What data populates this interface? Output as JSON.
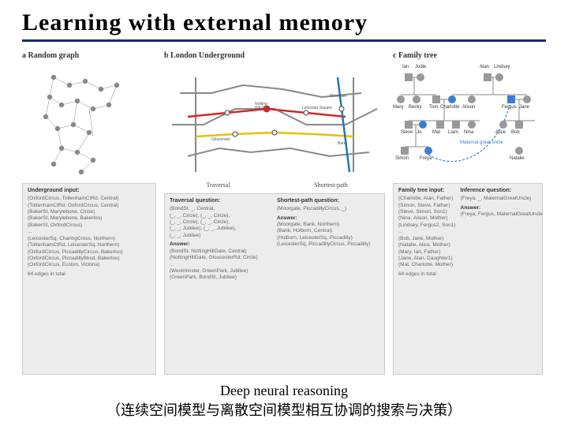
{
  "title": "Learning with  external  memory",
  "caption1": "Deep neural reasoning",
  "caption2": "（连续空间模型与离散空间模型相互协调的搜索与决策）",
  "panels": {
    "a": {
      "label": "a  Random graph",
      "table": {
        "header": "Underground input:",
        "lines": [
          "(OxfordCircus, TottenhamCtRd, Central)",
          "(TottenhamCtRd, OxfordCircus, Central)",
          "(BakerSt, Marylebone, Circle)",
          "(BakerSt, Marylebone, Bakerloo)",
          "(BakerSt, OxfordCircus)",
          "...",
          "(LeicesterSq, CharingCross, Northern)",
          "(TottenhamCtRd, LeicesterSq, Northern)",
          "(OxfordCircus, PiccadillyCircus, Bakerloo)",
          "(OxfordCircus, PiccadillyBksd, Bakerloo)",
          "(OxfordCircus, Euston, Victoria)"
        ],
        "footer": "84 edges in total"
      }
    },
    "b": {
      "label": "b  London Underground",
      "sub_left": "Traversal",
      "sub_right": "Shortest-path",
      "traversal": {
        "header": "Traversal question:",
        "lines": [
          "(BondSt, _, Central,",
          "(_, _, Circle), (_, _, Circle),",
          "(_, _, Circle), (_, _, Circle),",
          "(_, _, Jubilee), (_, _, Jubilee),",
          "(_, _, Jubilee)"
        ],
        "ans_label": "Answer:",
        "answers": [
          "(BondSt, NottingHillGate, Central)",
          "(NottingHillGate, GloucesterRd, Circle)",
          "...",
          "(Westminster, GreenPark, Jubilee)",
          "(GreenPark, BondSt, Jubilee)"
        ]
      },
      "shortest": {
        "header": "Shortest-path question:",
        "lines": [
          "(Moorgate, PiccadillyCircus, _)"
        ],
        "ans_label": "Answer:",
        "answers": [
          "(Moorgate, Bank, Northern)",
          "(Bank, Holborn, Central)",
          "(Holborn, LeicesterSq, Piccadilly)",
          "(LeicesterSq, PiccadillyCircus, Piccadilly)"
        ]
      }
    },
    "c": {
      "label": "c  Family tree",
      "people": {
        "top1": [
          "Ian",
          "Jodie"
        ],
        "top2": [
          "Alan",
          "Lindsey"
        ],
        "mid1": [
          "Mary",
          "Becky",
          "Tom",
          "Charlotte",
          "Alison",
          "Fergus",
          "Jane"
        ],
        "low1": [
          "Steve",
          "Jo",
          "Mat",
          "Liam",
          "Nina",
          "Alice",
          "Bob"
        ],
        "bot1": [
          "Simon",
          "Freya",
          "Natalie"
        ],
        "maternal": "Maternal great uncle"
      },
      "input": {
        "header": "Family tree input:",
        "lines": [
          "(Charlotte, Alan, Father)",
          "(Simon, Steve, Father)",
          "(Steve, Simon, Son1)",
          "(Nina, Alison, Mother)",
          "(Lindsey, Fergus2, Son1)",
          "...",
          "(Bob, Jane, Mother)",
          "(Natalie, Alice, Mother)",
          "(Mary, Ian, Father)",
          "(Jane, Alan, Daughter1)",
          "(Mat, Charlotte, Mother)"
        ],
        "footer": "64 edges in total"
      },
      "inference": {
        "header": "Inference question:",
        "lines": [
          "(Freya, _, MaternalGreatUncle)"
        ],
        "ans_label": "Answer:",
        "answers": [
          "(Freya, Fergus, MaternalGreatUncle)"
        ]
      }
    }
  },
  "colors": {
    "title_rule": "#1a2a6c",
    "table_bg": "#ececec",
    "node_gray": "#999999",
    "node_blue": "#3b7dd8",
    "tube_red": "#d62728",
    "tube_yellow": "#e6c200",
    "tube_gray": "#888888",
    "tube_blue": "#1f77b4"
  }
}
